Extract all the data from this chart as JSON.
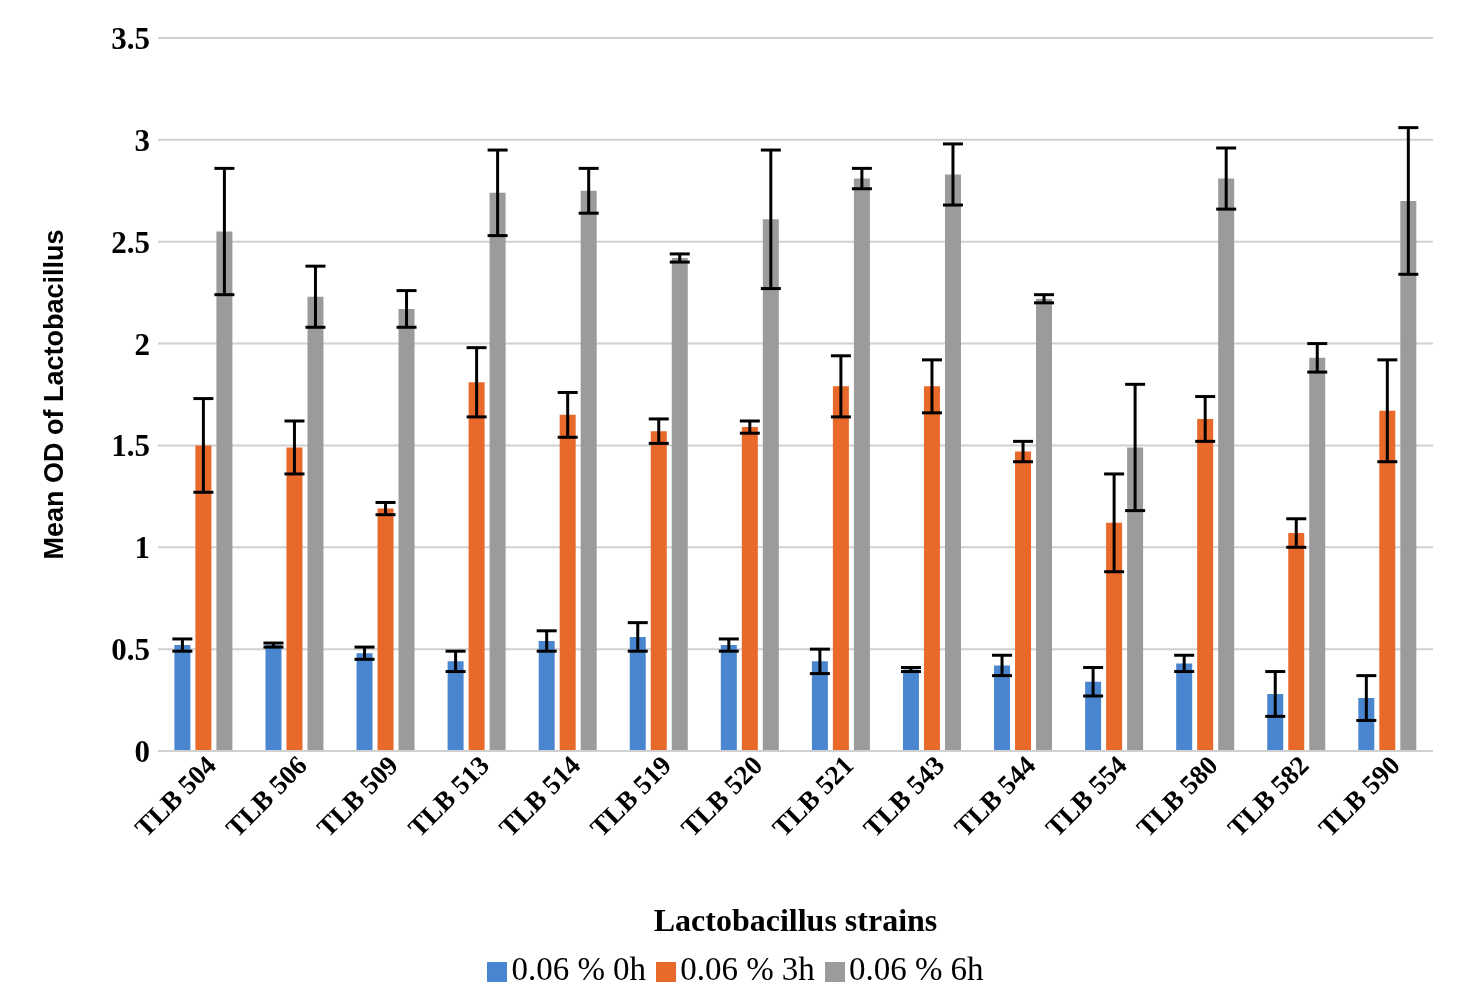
{
  "chart_data": {
    "type": "bar",
    "xlabel": "Lactobacillus strains",
    "ylabel": "Mean OD of Lactobacillus",
    "categories": [
      "TLB 504",
      "TLB 506",
      "TLB 509",
      "TLB 513",
      "TLB 514",
      "TLB 519",
      "TLB 520",
      "TLB 521",
      "TLB 543",
      "TLB 544",
      "TLB 554",
      "TLB 580",
      "TLB 582",
      "TLB 590"
    ],
    "series": [
      {
        "name": "0.06 % 0h",
        "color": "#4a86d0",
        "values": [
          0.52,
          0.52,
          0.48,
          0.44,
          0.54,
          0.56,
          0.52,
          0.44,
          0.4,
          0.42,
          0.34,
          0.43,
          0.28,
          0.26
        ],
        "errors": [
          0.03,
          0.01,
          0.03,
          0.05,
          0.05,
          0.07,
          0.03,
          0.06,
          0.01,
          0.05,
          0.07,
          0.04,
          0.11,
          0.11
        ]
      },
      {
        "name": "0.06 % 3h",
        "color": "#e8692a",
        "values": [
          1.5,
          1.49,
          1.19,
          1.81,
          1.65,
          1.57,
          1.59,
          1.79,
          1.79,
          1.47,
          1.12,
          1.63,
          1.07,
          1.67
        ],
        "errors": [
          0.23,
          0.13,
          0.03,
          0.17,
          0.11,
          0.06,
          0.03,
          0.15,
          0.13,
          0.05,
          0.24,
          0.11,
          0.07,
          0.25
        ]
      },
      {
        "name": "0.06 % 6h",
        "color": "#9b9b9b",
        "values": [
          2.55,
          2.23,
          2.17,
          2.74,
          2.75,
          2.42,
          2.61,
          2.81,
          2.83,
          2.22,
          1.49,
          2.81,
          1.93,
          2.7
        ],
        "errors": [
          0.31,
          0.15,
          0.09,
          0.21,
          0.11,
          0.02,
          0.34,
          0.05,
          0.15,
          0.02,
          0.31,
          0.15,
          0.07,
          0.36
        ]
      }
    ],
    "ylim": [
      0,
      3.5
    ],
    "yticks": [
      0,
      {
        "value": 0.5,
        "label": "0.5"
      },
      1,
      {
        "value": 1.5,
        "label": "1.5"
      },
      2,
      {
        "value": 2.5,
        "label": "2.5"
      },
      3,
      {
        "value": 3.5,
        "label": "3.5"
      }
    ],
    "grid": "y",
    "legend": "bottom"
  }
}
